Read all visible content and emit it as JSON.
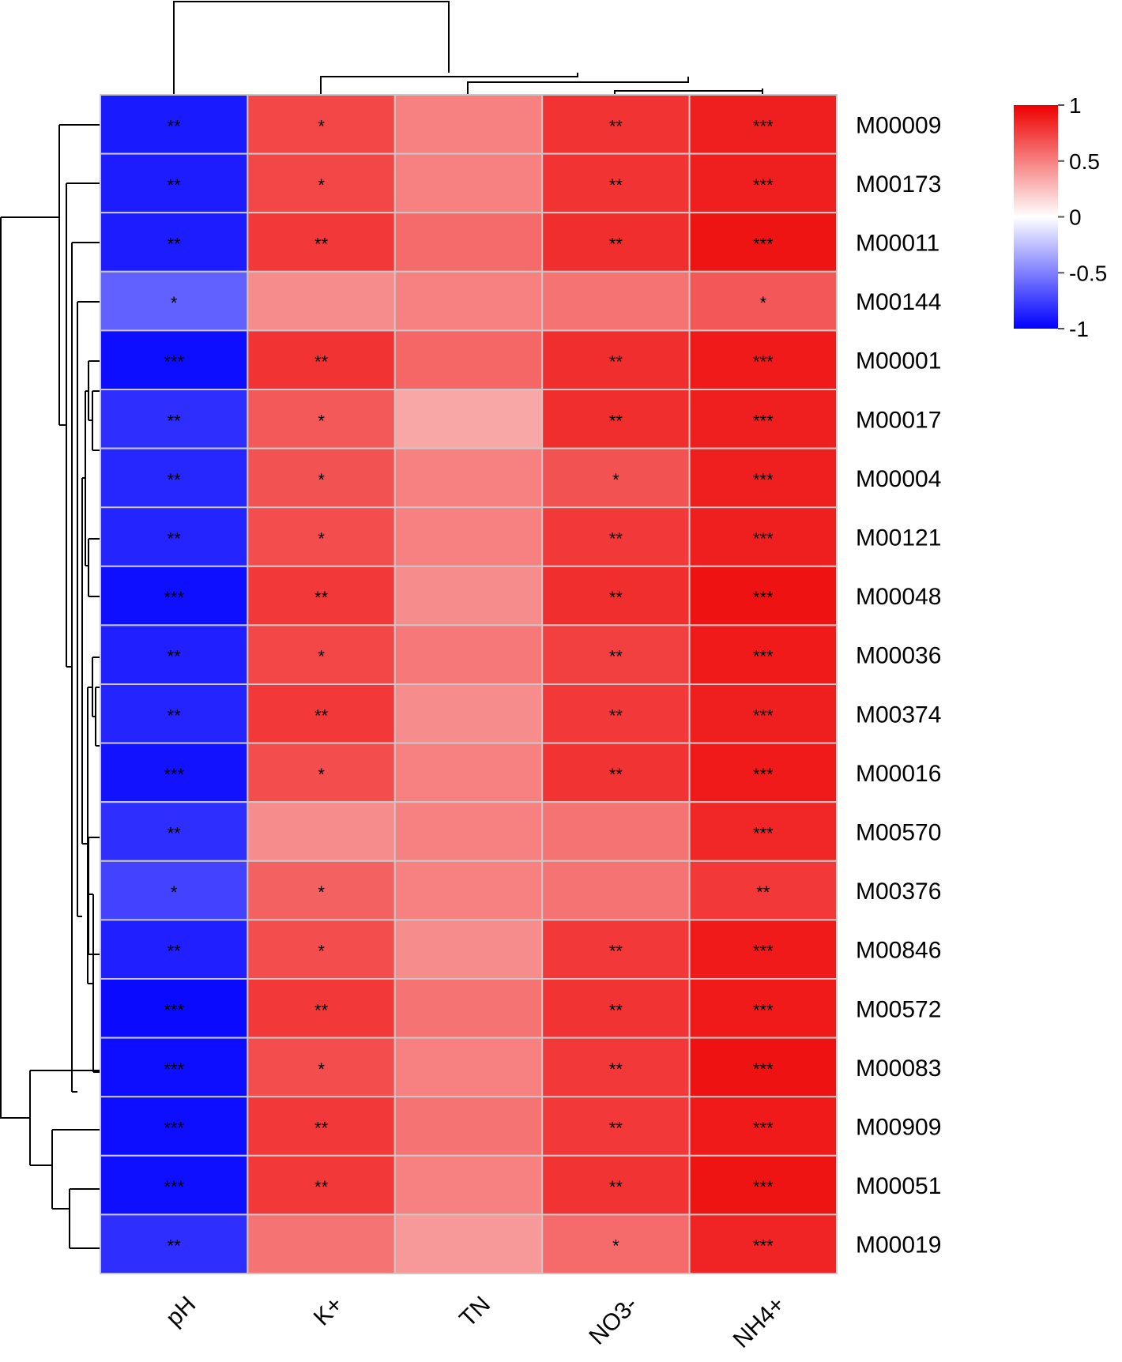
{
  "chart_data": {
    "type": "heatmap",
    "title": "",
    "columns": [
      "pH",
      "K+",
      "TN",
      "NO3-",
      "NH4+"
    ],
    "rows": [
      "M00009",
      "M00173",
      "M00011",
      "M00144",
      "M00001",
      "M00017",
      "M00004",
      "M00121",
      "M00048",
      "M00036",
      "M00374",
      "M00016",
      "M00570",
      "M00376",
      "M00846",
      "M00572",
      "M00083",
      "M00909",
      "M00051",
      "M00019"
    ],
    "values": [
      [
        -0.9,
        0.72,
        0.5,
        0.8,
        0.88
      ],
      [
        -0.89,
        0.72,
        0.5,
        0.8,
        0.88
      ],
      [
        -0.89,
        0.78,
        0.58,
        0.82,
        0.92
      ],
      [
        -0.62,
        0.45,
        0.5,
        0.55,
        0.66
      ],
      [
        -0.95,
        0.8,
        0.6,
        0.82,
        0.9
      ],
      [
        -0.82,
        0.65,
        0.35,
        0.82,
        0.88
      ],
      [
        -0.85,
        0.68,
        0.5,
        0.68,
        0.88
      ],
      [
        -0.86,
        0.7,
        0.5,
        0.78,
        0.88
      ],
      [
        -0.94,
        0.78,
        0.45,
        0.82,
        0.93
      ],
      [
        -0.88,
        0.72,
        0.53,
        0.75,
        0.9
      ],
      [
        -0.86,
        0.78,
        0.45,
        0.78,
        0.88
      ],
      [
        -0.93,
        0.7,
        0.5,
        0.8,
        0.9
      ],
      [
        -0.82,
        0.45,
        0.5,
        0.55,
        0.85
      ],
      [
        -0.74,
        0.62,
        0.5,
        0.55,
        0.78
      ],
      [
        -0.88,
        0.7,
        0.45,
        0.78,
        0.9
      ],
      [
        -0.96,
        0.78,
        0.55,
        0.8,
        0.9
      ],
      [
        -0.95,
        0.7,
        0.5,
        0.78,
        0.93
      ],
      [
        -0.95,
        0.78,
        0.55,
        0.78,
        0.9
      ],
      [
        -0.94,
        0.78,
        0.5,
        0.8,
        0.92
      ],
      [
        -0.82,
        0.55,
        0.4,
        0.58,
        0.86
      ]
    ],
    "significance": [
      [
        "**",
        "*",
        "",
        "**",
        "***"
      ],
      [
        "**",
        "*",
        "",
        "**",
        "***"
      ],
      [
        "**",
        "**",
        "",
        "**",
        "***"
      ],
      [
        "*",
        "",
        "",
        "",
        "*"
      ],
      [
        "***",
        "**",
        "",
        "**",
        "***"
      ],
      [
        "**",
        "*",
        "",
        "**",
        "***"
      ],
      [
        "**",
        "*",
        "",
        "*",
        "***"
      ],
      [
        "**",
        "*",
        "",
        "**",
        "***"
      ],
      [
        "***",
        "**",
        "",
        "**",
        "***"
      ],
      [
        "**",
        "*",
        "",
        "**",
        "***"
      ],
      [
        "**",
        "**",
        "",
        "**",
        "***"
      ],
      [
        "***",
        "*",
        "",
        "**",
        "***"
      ],
      [
        "**",
        "",
        "",
        "",
        "***"
      ],
      [
        "*",
        "*",
        "",
        "",
        "**"
      ],
      [
        "**",
        "*",
        "",
        "**",
        "***"
      ],
      [
        "***",
        "**",
        "",
        "**",
        "***"
      ],
      [
        "***",
        "*",
        "",
        "**",
        "***"
      ],
      [
        "***",
        "**",
        "",
        "**",
        "***"
      ],
      [
        "***",
        "**",
        "",
        "**",
        "***"
      ],
      [
        "**",
        "",
        "",
        "*",
        "***"
      ]
    ],
    "color_scale": {
      "min": -1,
      "max": 1,
      "low_color": "#0000ff",
      "mid_color": "#ffffff",
      "high_color": "#ee0000",
      "ticks": [
        "1",
        "0.5",
        "0",
        "-0.5",
        "-1"
      ]
    },
    "legend_placement": "top-right",
    "grid_color": "#c8c8c8"
  }
}
